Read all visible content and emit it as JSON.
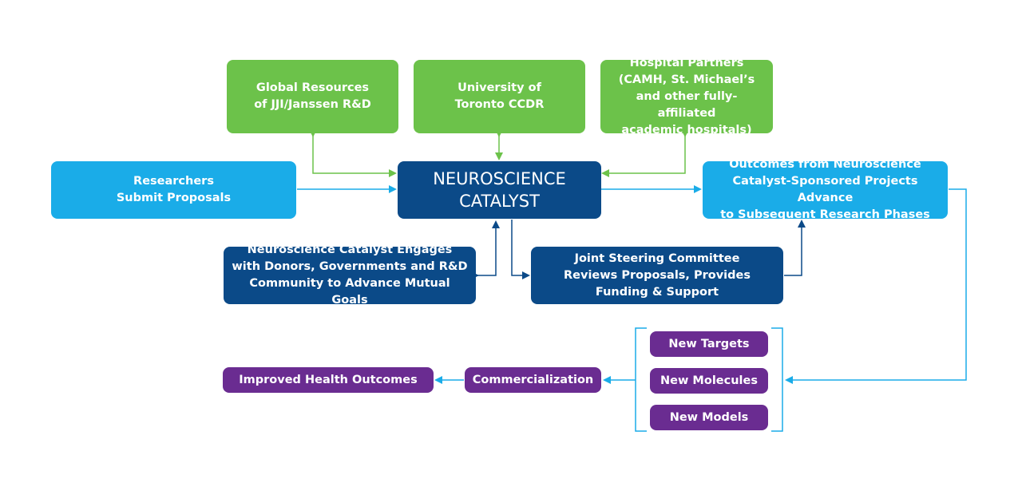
{
  "colors": {
    "green": "#6cc24a",
    "light_blue": "#1aace8",
    "dark_blue": "#0b4a88",
    "purple": "#6a2c91"
  },
  "nodes": {
    "global_resources": "Global Resources\nof JJI/Janssen R&D",
    "university": "University of\nToronto CCDR",
    "hospital_partners": "Hospital Partners\n(CAMH, St. Michael’s\nand other fully-affiliated\nacademic hospitals)",
    "researchers": "Researchers\nSubmit Proposals",
    "catalyst": "NEUROSCIENCE\nCATALYST",
    "outcomes": "Outcomes from Neuroscience\nCatalyst-Sponsored Projects Advance\nto Subsequent Research Phases",
    "engages": "Neuroscience Catalyst Engages\nwith Donors, Governments and R&D\nCommunity to Advance Mutual Goals",
    "steering": "Joint Steering Committee\nReviews Proposals, Provides\nFunding & Support",
    "new_targets": "New Targets",
    "new_molecules": "New Molecules",
    "new_models": "New Models",
    "commercialization": "Commercialization",
    "improved_health": "Improved Health Outcomes"
  }
}
